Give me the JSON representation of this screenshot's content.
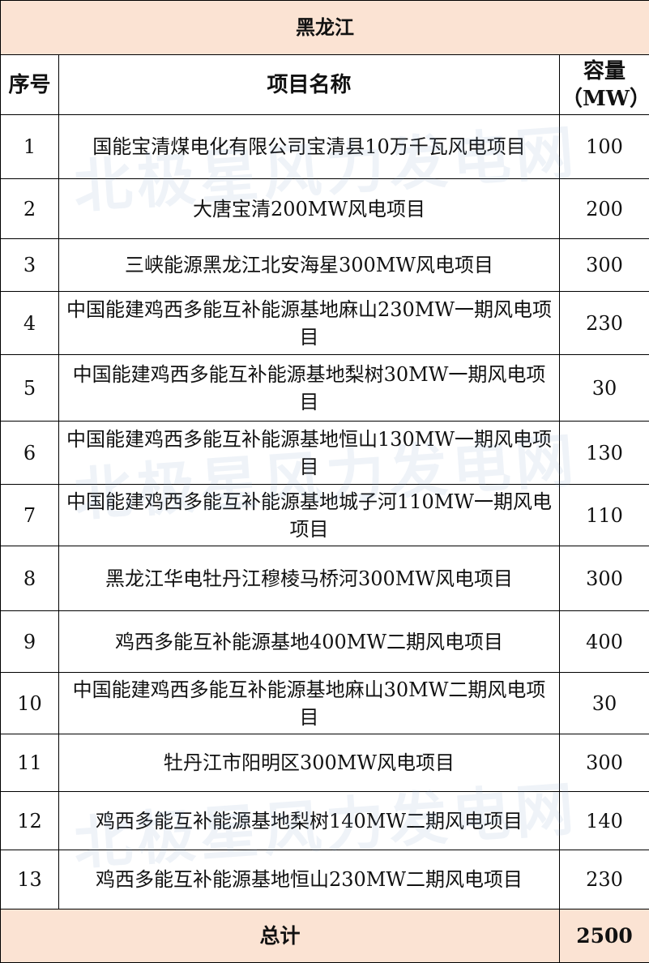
{
  "title": "黑龙江",
  "watermark": "北极星风力发电网",
  "table": {
    "header": [
      "序号",
      "项目名称",
      "容量（MW）"
    ],
    "rows": [
      [
        1,
        "国能宝清煤电化有限公司宝清县10万千瓦风电项目",
        100
      ],
      [
        2,
        "大唐宝清200MW风电项目",
        200
      ],
      [
        3,
        "三峡能源黑龙江北安海星300MW风电项目",
        300
      ],
      [
        4,
        "中国能建鸡西多能互补能源基地麻山230MW一期风电项目",
        230
      ],
      [
        5,
        "中国能建鸡西多能互补能源基地梨树30MW一期风电项目",
        30
      ],
      [
        6,
        "中国能建鸡西多能互补能源基地恒山130MW一期风电项目",
        130
      ],
      [
        7,
        "中国能建鸡西多能互补能源基地城子河110MW一期风电项目",
        110
      ],
      [
        8,
        "黑龙江华电牡丹江穆棱马桥河300MW风电项目",
        300
      ],
      [
        9,
        "鸡西多能互补能源基地400MW二期风电项目",
        400
      ],
      [
        10,
        "中国能建鸡西多能互补能源基地麻山30MW二期风电项目",
        30
      ],
      [
        11,
        "牡丹江市阳明区300MW风电项目",
        300
      ],
      [
        12,
        "鸡西多能互补能源基地梨树140MW二期风电项目",
        140
      ],
      [
        13,
        "鸡西多能互补能源基地恒山230MW二期风电项目",
        230
      ]
    ],
    "total": {
      "label": "总计",
      "value": 2500
    }
  }
}
